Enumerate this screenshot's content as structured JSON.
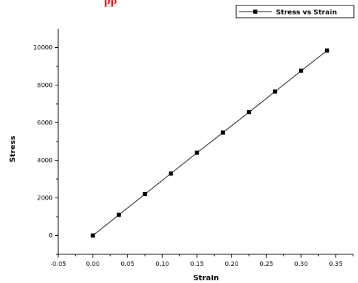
{
  "chart_data": {
    "type": "line",
    "title": "pp",
    "title_color": "#ff0000",
    "xlabel": "Strain",
    "ylabel": "Stress",
    "xlim": [
      -0.05,
      0.375
    ],
    "ylim": [
      -1000,
      11000
    ],
    "xticks": [
      -0.05,
      0.0,
      0.05,
      0.1,
      0.15,
      0.2,
      0.25,
      0.3,
      0.35
    ],
    "xtick_labels": [
      "-0.05",
      "0.00",
      "0.05",
      "0.10",
      "0.15",
      "0.20",
      "0.25",
      "0.30",
      "0.35"
    ],
    "yticks": [
      0,
      2000,
      4000,
      6000,
      8000,
      10000
    ],
    "ytick_labels": [
      "0",
      "2000",
      "4000",
      "6000",
      "8000",
      "10000"
    ],
    "grid": false,
    "legend_position": "top-right",
    "line_color": "#000000",
    "series": [
      {
        "name": "Stress vs Strain",
        "marker": "square",
        "x": [
          0.0,
          0.0375,
          0.075,
          0.1125,
          0.15,
          0.1875,
          0.225,
          0.2625,
          0.3,
          0.3375
        ],
        "y": [
          0,
          1100,
          2200,
          3300,
          4400,
          5480,
          6560,
          7660,
          8760,
          9840
        ]
      }
    ]
  }
}
